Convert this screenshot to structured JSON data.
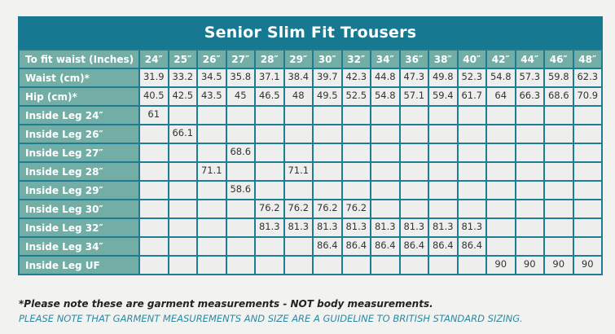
{
  "title": "Senior Slim Fit Trousers",
  "header": {
    "label": "To fit waist (Inches)",
    "sizes": [
      "24″",
      "25″",
      "26″",
      "27″",
      "28″",
      "29″",
      "30″",
      "32″",
      "34″",
      "36″",
      "38″",
      "40″",
      "42″",
      "44″",
      "46″",
      "48″"
    ]
  },
  "rows": [
    {
      "label": "Waist (cm)*",
      "values": [
        "31.9",
        "33.2",
        "34.5",
        "35.8",
        "37.1",
        "38.4",
        "39.7",
        "42.3",
        "44.8",
        "47.3",
        "49.8",
        "52.3",
        "54.8",
        "57.3",
        "59.8",
        "62.3"
      ]
    },
    {
      "label": "Hip (cm)*",
      "values": [
        "40.5",
        "42.5",
        "43.5",
        "45",
        "46.5",
        "48",
        "49.5",
        "52.5",
        "54.8",
        "57.1",
        "59.4",
        "61.7",
        "64",
        "66.3",
        "68.6",
        "70.9"
      ]
    },
    {
      "label": "Inside Leg 24″",
      "values": [
        "61",
        "",
        "",
        "",
        "",
        "",
        "",
        "",
        "",
        "",
        "",
        "",
        "",
        "",
        "",
        ""
      ]
    },
    {
      "label": "Inside Leg 26″",
      "values": [
        "",
        "66.1",
        "",
        "",
        "",
        "",
        "",
        "",
        "",
        "",
        "",
        "",
        "",
        "",
        "",
        ""
      ]
    },
    {
      "label": "Inside Leg 27″",
      "values": [
        "",
        "",
        "",
        "68.6",
        "",
        "",
        "",
        "",
        "",
        "",
        "",
        "",
        "",
        "",
        "",
        ""
      ]
    },
    {
      "label": "Inside Leg 28″",
      "values": [
        "",
        "",
        "71.1",
        "",
        "",
        "71.1",
        "",
        "",
        "",
        "",
        "",
        "",
        "",
        "",
        "",
        ""
      ]
    },
    {
      "label": "Inside Leg 29″",
      "values": [
        "",
        "",
        "",
        "58.6",
        "",
        "",
        "",
        "",
        "",
        "",
        "",
        "",
        "",
        "",
        "",
        ""
      ]
    },
    {
      "label": "Inside Leg 30″",
      "values": [
        "",
        "",
        "",
        "",
        "76.2",
        "76.2",
        "76.2",
        "76.2",
        "",
        "",
        "",
        "",
        "",
        "",
        "",
        ""
      ]
    },
    {
      "label": "Inside Leg 32″",
      "values": [
        "",
        "",
        "",
        "",
        "81.3",
        "81.3",
        "81.3",
        "81.3",
        "81.3",
        "81.3",
        "81.3",
        "81.3",
        "",
        "",
        "",
        ""
      ]
    },
    {
      "label": "Inside Leg 34″",
      "values": [
        "",
        "",
        "",
        "",
        "",
        "",
        "86.4",
        "86.4",
        "86.4",
        "86.4",
        "86.4",
        "86.4",
        "",
        "",
        "",
        ""
      ]
    },
    {
      "label": "Inside Leg UF",
      "values": [
        "",
        "",
        "",
        "",
        "",
        "",
        "",
        "",
        "",
        "",
        "",
        "",
        "90",
        "90",
        "90",
        "90"
      ]
    }
  ],
  "notes": {
    "garment": "*Please note these are garment measurements - NOT body measurements.",
    "guideline": "PLEASE NOTE THAT GARMENT MEASUREMENTS AND SIZE ARE A GUIDELINE TO BRITISH STANDARD SIZING."
  },
  "colors": {
    "title_bg": "#177891",
    "label_bg": "#73aea6",
    "cell_bg": "#eeeeec",
    "guideline_text": "#2a8aa3"
  }
}
